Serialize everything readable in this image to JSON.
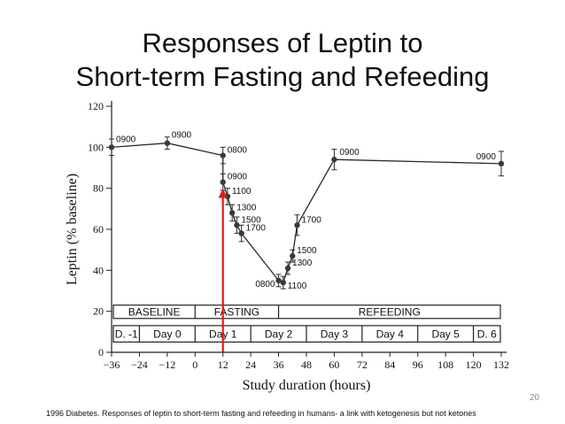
{
  "slide": {
    "title_line1": "Responses of Leptin to",
    "title_line2": "Short-term Fasting and Refeeding",
    "page_number": "20",
    "caption": "1996 Diabetes. Responses of leptin to short-term fasting and refeeding in humans- a link with ketogenesis but not ketones"
  },
  "chart_data": {
    "type": "line",
    "xlabel": "Study duration (hours)",
    "ylabel": "Leptin (% baseline)",
    "xlim": [
      -36,
      132
    ],
    "ylim": [
      0,
      120
    ],
    "x_ticks": [
      -36,
      -24,
      -12,
      0,
      12,
      24,
      36,
      48,
      60,
      72,
      84,
      96,
      108,
      120,
      132
    ],
    "x_tick_labels": [
      "−36",
      "−24",
      "−12",
      "0",
      "12",
      "24",
      "36",
      "48",
      "60",
      "72",
      "84",
      "96",
      "108",
      "120",
      "132"
    ],
    "y_ticks": [
      0,
      20,
      40,
      60,
      80,
      100,
      120
    ],
    "series": [
      {
        "points": [
          {
            "x": -36,
            "y": 100,
            "err": 4,
            "label": "0900"
          },
          {
            "x": -12,
            "y": 102,
            "err": 3,
            "label": "0900"
          },
          {
            "x": 12,
            "y": 96,
            "err": 4,
            "label": "0800"
          },
          {
            "x": 12,
            "y": 83,
            "err": 4,
            "label": "0900"
          },
          {
            "x": 14,
            "y": 76,
            "err": 4,
            "label": "1100"
          },
          {
            "x": 16,
            "y": 68,
            "err": 4,
            "label": "1300"
          },
          {
            "x": 18,
            "y": 62,
            "err": 4,
            "label": "1500"
          },
          {
            "x": 20,
            "y": 58,
            "err": 4,
            "label": "1700"
          },
          {
            "x": 36,
            "y": 35,
            "err": 3,
            "label": "0800"
          },
          {
            "x": 38,
            "y": 34,
            "err": 3,
            "label": "1100"
          },
          {
            "x": 40,
            "y": 41,
            "err": 3,
            "label": "1300"
          },
          {
            "x": 42,
            "y": 47,
            "err": 3,
            "label": "1500"
          },
          {
            "x": 44,
            "y": 62,
            "err": 5,
            "label": "1700"
          },
          {
            "x": 60,
            "y": 94,
            "err": 5,
            "label": "0900"
          },
          {
            "x": 132,
            "y": 92,
            "err": 6,
            "label": "0900"
          }
        ]
      }
    ],
    "phases": [
      {
        "label": "BASELINE",
        "x_start": -36,
        "x_end": 0
      },
      {
        "label": "FASTING",
        "x_start": 0,
        "x_end": 36
      },
      {
        "label": "REFEEDING",
        "x_start": 36,
        "x_end": 132
      }
    ],
    "days": [
      {
        "label": "D. -1",
        "x_start": -36,
        "x_end": -24
      },
      {
        "label": "Day 0",
        "x_start": -24,
        "x_end": 0
      },
      {
        "label": "Day 1",
        "x_start": 0,
        "x_end": 24
      },
      {
        "label": "Day 2",
        "x_start": 24,
        "x_end": 48
      },
      {
        "label": "Day 3",
        "x_start": 48,
        "x_end": 72
      },
      {
        "label": "Day 4",
        "x_start": 72,
        "x_end": 96
      },
      {
        "label": "Day 5",
        "x_start": 96,
        "x_end": 120
      },
      {
        "label": "D. 6",
        "x_start": 120,
        "x_end": 132
      }
    ],
    "annotation": {
      "type": "arrow",
      "color": "#e01b1b",
      "x": 12,
      "y_from": 0,
      "y_to": 80
    },
    "colors": {
      "line": "#2a2a2a",
      "axis": "#222222",
      "arrow": "#e01b1b"
    }
  }
}
